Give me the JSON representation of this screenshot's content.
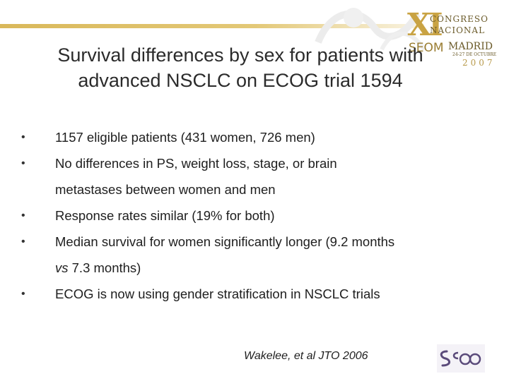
{
  "logo": {
    "numeral": "XI",
    "line1": "CONGRESO",
    "line2": "NACIONAL",
    "org": "SEOM",
    "city": "MADRID",
    "dates": "24-27 DE OCTUBRE",
    "year": "2007"
  },
  "title_line1": "Survival differences by sex for patients with",
  "title_line2": "advanced NSCLC on ECOG trial 1594",
  "bullets": {
    "b1": "1157 eligible patients (431 women, 726 men)",
    "b2_line1": "No differences in PS, weight loss, stage, or brain",
    "b2_line2": "metastases between women and men",
    "b3": "Response rates similar (19% for both)",
    "b4_line1": "Median survival for women significantly longer (9.2 months",
    "b4_vs": "vs",
    "b4_line2_rest": " 7.3 months)",
    "b5": "ECOG is now using gender stratification in NSCLC trials",
    "marker": "•"
  },
  "citation": "Wakelee, et al JTO 2006",
  "colors": {
    "accent_gold": "#c9a343",
    "band_gold": "#e3c877",
    "seom_purple": "#5a4a7a"
  }
}
